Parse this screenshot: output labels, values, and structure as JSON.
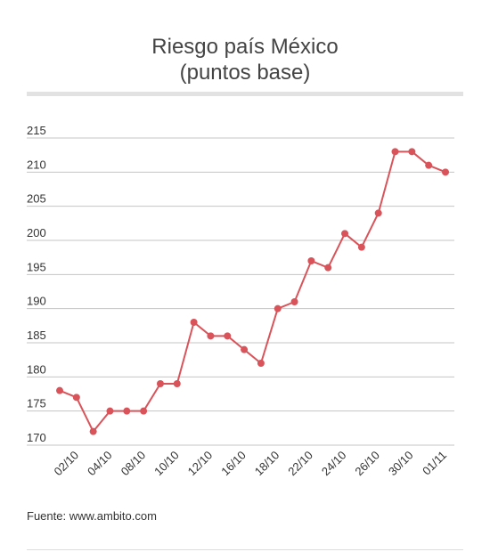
{
  "chart_data": {
    "type": "line",
    "title_line1": "Riesgo país México",
    "title_line2": "(puntos base)",
    "xlabel": "",
    "ylabel": "",
    "ylim": [
      170,
      215
    ],
    "yticks": [
      215,
      210,
      205,
      200,
      195,
      190,
      185,
      180,
      175,
      170
    ],
    "xtick_labels": [
      "02/10",
      "04/10",
      "08/10",
      "10/10",
      "12/10",
      "16/10",
      "18/10",
      "22/10",
      "24/10",
      "26/10",
      "30/10",
      "01/11"
    ],
    "grid": true,
    "color": "#d9545a",
    "values": [
      178,
      177,
      172,
      175,
      175,
      175,
      179,
      179,
      188,
      186,
      186,
      184,
      182,
      190,
      191,
      197,
      196,
      201,
      199,
      204,
      213,
      213,
      211,
      210
    ],
    "source": "Fuente: www.ambito.com"
  }
}
